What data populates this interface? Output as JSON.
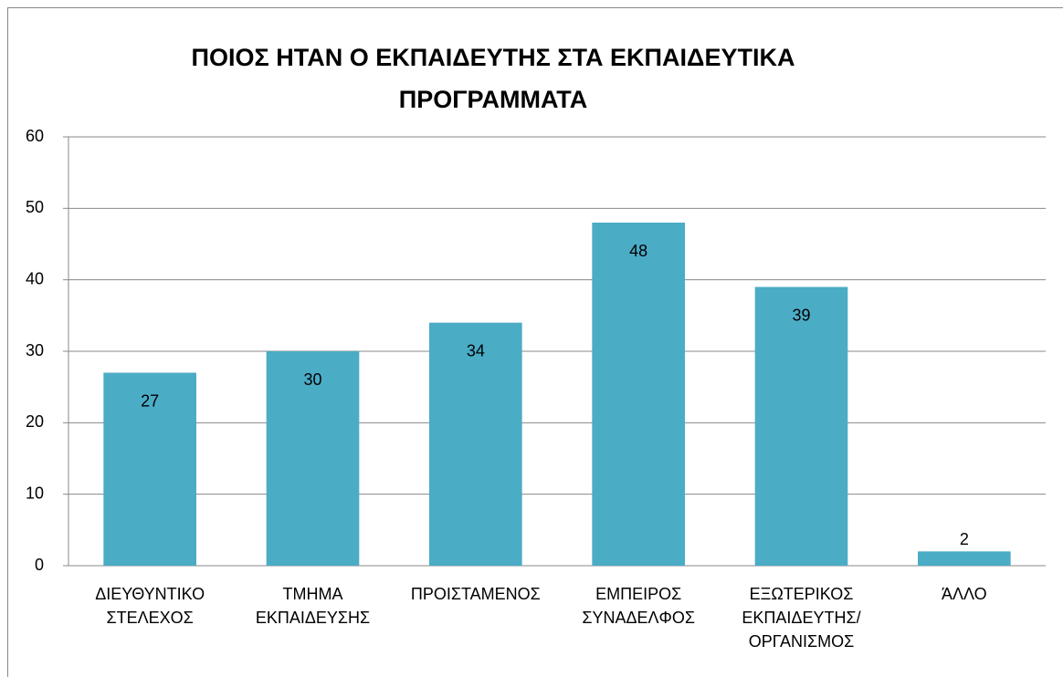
{
  "chart_data": {
    "type": "bar",
    "title": "ΠΟΙΟΣ ΗΤΑΝ Ο ΕΚΠΑΙΔΕΥΤΗΣ ΣΤΑ ΕΚΠΑΙΔΕΥΤΙΚΑ\nΠΡΟΓΡΑΜΜΑΤΑ",
    "categories": [
      "ΔΙΕΥΘΥΝΤΙΚΟ\nΣΤΕΛΕΧΟΣ",
      "ΤΜΗΜΑ\nΕΚΠΑΙΔΕΥΣΗΣ",
      "ΠΡΟΙΣΤΑΜΕΝΟΣ",
      "ΕΜΠΕΙΡΟΣ\nΣΥΝΑΔΕΛΦΟΣ",
      "ΕΞΩΤΕΡΙΚΟΣ\nΕΚΠΑΙΔΕΥΤΗΣ/\nΟΡΓΑΝΙΣΜΟΣ",
      "ΆΛΛΟ"
    ],
    "values": [
      27,
      30,
      34,
      48,
      39,
      2
    ],
    "color": "#4bacc6",
    "ylim": [
      0,
      60
    ],
    "yticks": [
      0,
      10,
      20,
      30,
      40,
      50,
      60
    ],
    "grid": true
  }
}
